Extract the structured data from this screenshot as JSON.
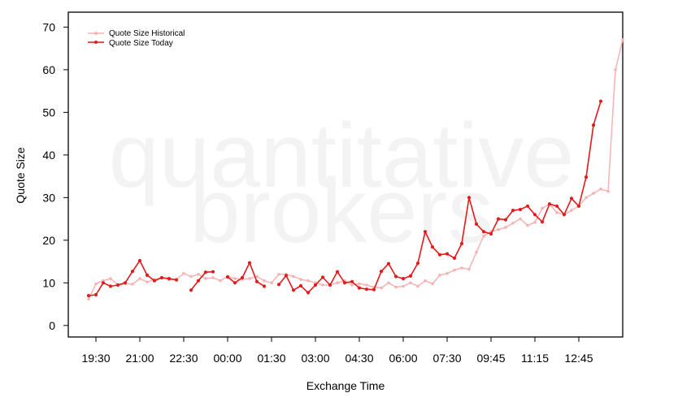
{
  "chart_data": {
    "type": "line",
    "xlabel": "Exchange Time",
    "ylabel": "Quote Size",
    "ylim": [
      -2.7,
      73.5
    ],
    "y_ticks": [
      0,
      10,
      20,
      30,
      40,
      50,
      60,
      70
    ],
    "x_tick_labels": [
      "19:30",
      "21:00",
      "22:30",
      "00:00",
      "01:30",
      "03:00",
      "04:30",
      "06:00",
      "07:30",
      "09:45",
      "11:15",
      "12:45"
    ],
    "watermark": [
      "quantitative",
      "brokers"
    ],
    "legend_position": "top-left",
    "grid": false,
    "series": [
      {
        "name": "Quote Size Historical",
        "color": "#f7b3b3",
        "values": [
          6.2,
          9.8,
          10.5,
          11.0,
          9.5,
          9.8,
          9.7,
          11.0,
          10.2,
          10.8,
          11.2,
          10.8,
          10.8,
          12.2,
          11.5,
          12.0,
          11.0,
          11.2,
          10.5,
          11.5,
          11.0,
          10.8,
          11.0,
          11.5,
          10.5,
          10.0,
          12.0,
          12.0,
          11.5,
          10.8,
          10.5,
          10.0,
          9.5,
          9.5,
          10.0,
          10.5,
          9.5,
          9.8,
          9.5,
          9.0,
          8.8,
          10.0,
          9.0,
          9.2,
          10.0,
          9.2,
          10.5,
          9.8,
          11.8,
          12.2,
          13.0,
          13.5,
          13.2,
          17.2,
          21.0,
          22.0,
          22.5,
          23.0,
          24.0,
          25.0,
          23.5,
          24.2,
          27.5,
          28.5,
          26.5,
          26.0,
          27.0,
          28.0,
          30.0,
          31.0,
          32.0,
          31.5,
          60.0,
          67.0
        ]
      },
      {
        "name": "Quote Size Today",
        "color": "#e41a1c",
        "values": [
          7.0,
          7.2,
          10.0,
          9.2,
          9.5,
          10.0,
          12.7,
          15.2,
          11.8,
          10.5,
          11.2,
          11.0,
          10.7,
          null,
          8.3,
          10.5,
          12.5,
          12.6,
          null,
          11.4,
          10.0,
          11.2,
          14.7,
          10.3,
          9.2,
          null,
          9.6,
          11.7,
          8.3,
          9.3,
          7.7,
          9.5,
          11.3,
          9.5,
          12.6,
          10.0,
          10.3,
          8.8,
          8.5,
          8.4,
          12.7,
          14.5,
          11.5,
          11.0,
          11.6,
          14.6,
          22.0,
          18.4,
          16.6,
          16.8,
          15.8,
          19.2,
          30.0,
          23.8,
          22.0,
          21.5,
          25.0,
          24.8,
          27.0,
          27.2,
          28.0,
          26.0,
          24.3,
          28.5,
          28.0,
          26.0,
          29.8,
          28.0,
          34.8,
          47.0,
          52.6
        ]
      }
    ]
  }
}
